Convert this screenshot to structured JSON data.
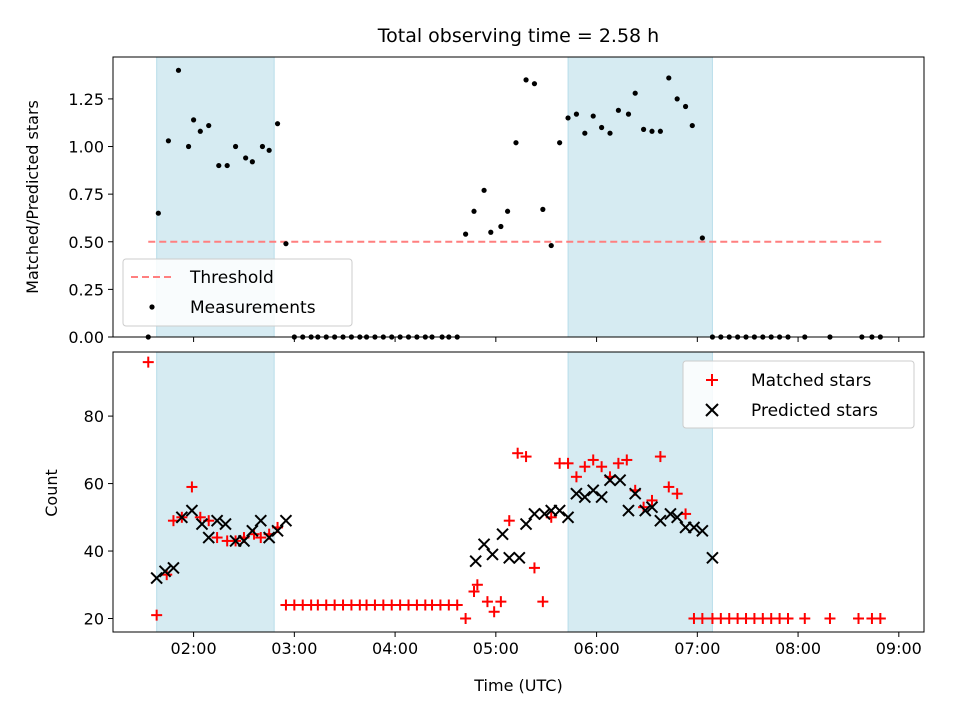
{
  "chart_data": [
    {
      "type": "scatter",
      "title": "Total observing time = 2.58 h",
      "ylabel": "Matched/Predicted stars",
      "xlabel": "",
      "xlim_hours": [
        1.2,
        9.25
      ],
      "ylim": [
        0,
        1.47
      ],
      "xticks": [
        "02:00",
        "03:00",
        "04:00",
        "05:00",
        "06:00",
        "07:00",
        "08:00",
        "09:00"
      ],
      "yticks": [
        "0.00",
        "0.25",
        "0.50",
        "0.75",
        "1.00",
        "1.25"
      ],
      "grid": false,
      "legend_position": "lower-left",
      "shaded_intervals": [
        [
          "01:38",
          "02:48"
        ],
        [
          "05:43",
          "07:09"
        ]
      ],
      "series": [
        {
          "name": "Threshold",
          "style": "dashed-line",
          "x": [
            "01:33",
            "08:50"
          ],
          "values": [
            0.5,
            0.5
          ]
        },
        {
          "name": "Measurements",
          "style": "dot",
          "x": [
            "01:33",
            "01:39",
            "01:45",
            "01:51",
            "01:57",
            "02:00",
            "02:04",
            "02:09",
            "02:15",
            "02:20",
            "02:25",
            "02:31",
            "02:35",
            "02:41",
            "02:45",
            "02:50",
            "02:55",
            "03:00",
            "03:05",
            "03:10",
            "03:14",
            "03:19",
            "03:24",
            "03:29",
            "03:34",
            "03:39",
            "03:43",
            "03:48",
            "03:53",
            "03:58",
            "04:03",
            "04:08",
            "04:13",
            "04:18",
            "04:22",
            "04:28",
            "04:32",
            "04:37",
            "04:42",
            "04:47",
            "04:53",
            "04:57",
            "05:03",
            "05:07",
            "05:12",
            "05:18",
            "05:23",
            "05:28",
            "05:33",
            "05:38",
            "05:43",
            "05:48",
            "05:53",
            "05:58",
            "06:03",
            "06:08",
            "06:13",
            "06:19",
            "06:23",
            "06:28",
            "06:33",
            "06:38",
            "06:43",
            "06:48",
            "06:53",
            "06:57",
            "07:03",
            "07:09",
            "07:14",
            "07:19",
            "07:24",
            "07:29",
            "07:34",
            "07:39",
            "07:44",
            "07:49",
            "07:54",
            "08:04",
            "08:19",
            "08:38",
            "08:44",
            "08:49"
          ],
          "values": [
            0.0,
            0.65,
            1.03,
            1.4,
            1.0,
            1.14,
            1.08,
            1.11,
            0.9,
            0.9,
            1.0,
            0.94,
            0.92,
            1.0,
            0.98,
            1.12,
            0.49,
            0.0,
            0.0,
            0.0,
            0.0,
            0.0,
            0.0,
            0.0,
            0.0,
            0.0,
            0.0,
            0.0,
            0.0,
            0.0,
            0.0,
            0.0,
            0.0,
            0.0,
            0.0,
            0.0,
            0.0,
            0.0,
            0.54,
            0.66,
            0.77,
            0.55,
            0.58,
            0.66,
            1.02,
            1.35,
            1.33,
            0.67,
            0.48,
            1.02,
            1.15,
            1.17,
            1.07,
            1.16,
            1.1,
            1.07,
            1.19,
            1.17,
            1.28,
            1.09,
            1.08,
            1.08,
            1.36,
            1.25,
            1.21,
            1.11,
            0.52,
            0.0,
            0.0,
            0.0,
            0.0,
            0.0,
            0.0,
            0.0,
            0.0,
            0.0,
            0.0,
            0.0,
            0.0,
            0.0,
            0.0,
            0.0
          ]
        }
      ]
    },
    {
      "type": "scatter",
      "title": "",
      "ylabel": "Count",
      "xlabel": "Time (UTC)",
      "xlim_hours": [
        1.2,
        9.25
      ],
      "ylim": [
        16,
        99
      ],
      "xticks": [
        "02:00",
        "03:00",
        "04:00",
        "05:00",
        "06:00",
        "07:00",
        "08:00",
        "09:00"
      ],
      "yticks": [
        "20",
        "40",
        "60",
        "80"
      ],
      "grid": false,
      "legend_position": "upper-right",
      "shaded_intervals": [
        [
          "01:38",
          "02:48"
        ],
        [
          "05:43",
          "07:09"
        ]
      ],
      "series": [
        {
          "name": "Matched stars",
          "style": "plus",
          "color": "#ff0000",
          "x": [
            "01:33",
            "01:38",
            "01:44",
            "01:48",
            "01:53",
            "01:59",
            "02:04",
            "02:09",
            "02:14",
            "02:20",
            "02:25",
            "02:30",
            "02:36",
            "02:40",
            "02:45",
            "02:50",
            "02:55",
            "03:00",
            "03:05",
            "03:10",
            "03:14",
            "03:19",
            "03:24",
            "03:29",
            "03:34",
            "03:39",
            "03:43",
            "03:48",
            "03:53",
            "03:58",
            "04:03",
            "04:08",
            "04:13",
            "04:18",
            "04:22",
            "04:27",
            "04:32",
            "04:37",
            "04:42",
            "04:47",
            "04:49",
            "04:55",
            "04:59",
            "05:03",
            "05:08",
            "05:13",
            "05:18",
            "05:23",
            "05:28",
            "05:33",
            "05:38",
            "05:43",
            "05:48",
            "05:53",
            "05:58",
            "06:03",
            "06:08",
            "06:13",
            "06:18",
            "06:23",
            "06:28",
            "06:33",
            "06:38",
            "06:43",
            "06:48",
            "06:53",
            "06:58",
            "07:03",
            "07:09",
            "07:14",
            "07:19",
            "07:24",
            "07:29",
            "07:34",
            "07:39",
            "07:44",
            "07:49",
            "07:54",
            "08:04",
            "08:19",
            "08:36",
            "08:44",
            "08:49"
          ],
          "values": [
            96,
            21,
            33,
            49,
            50,
            59,
            50,
            49,
            44,
            43,
            43,
            44,
            45,
            44,
            45,
            47,
            24,
            24,
            24,
            24,
            24,
            24,
            24,
            24,
            24,
            24,
            24,
            24,
            24,
            24,
            24,
            24,
            24,
            24,
            24,
            24,
            24,
            24,
            20,
            28,
            30,
            25,
            22,
            25,
            49,
            69,
            68,
            35,
            25,
            50,
            66,
            66,
            62,
            65,
            67,
            65,
            62,
            66,
            67,
            58,
            53,
            55,
            68,
            59,
            57,
            51,
            20,
            20,
            20,
            20,
            20,
            20,
            20,
            20,
            20,
            20,
            20,
            20,
            20,
            20,
            20,
            20,
            20
          ]
        },
        {
          "name": "Predicted stars",
          "style": "x",
          "color": "#000000",
          "x": [
            "01:38",
            "01:43",
            "01:48",
            "01:53",
            "01:59",
            "02:05",
            "02:09",
            "02:14",
            "02:19",
            "02:25",
            "02:30",
            "02:35",
            "02:40",
            "02:45",
            "02:50",
            "02:55",
            "04:48",
            "04:53",
            "04:58",
            "05:04",
            "05:08",
            "05:14",
            "05:18",
            "05:23",
            "05:29",
            "05:33",
            "05:38",
            "05:43",
            "05:48",
            "05:53",
            "05:58",
            "06:03",
            "06:08",
            "06:14",
            "06:19",
            "06:23",
            "06:29",
            "06:33",
            "06:38",
            "06:44",
            "06:48",
            "06:53",
            "06:58",
            "07:03",
            "07:09"
          ],
          "values": [
            32,
            34,
            35,
            50,
            52,
            48,
            44,
            49,
            48,
            43,
            43,
            46,
            49,
            44,
            46,
            49,
            37,
            42,
            39,
            45,
            38,
            38,
            48,
            51,
            51,
            52,
            52,
            50,
            57,
            56,
            58,
            56,
            61,
            61,
            52,
            57,
            52,
            53,
            49,
            51,
            50,
            47,
            47,
            46,
            38
          ]
        }
      ]
    }
  ]
}
